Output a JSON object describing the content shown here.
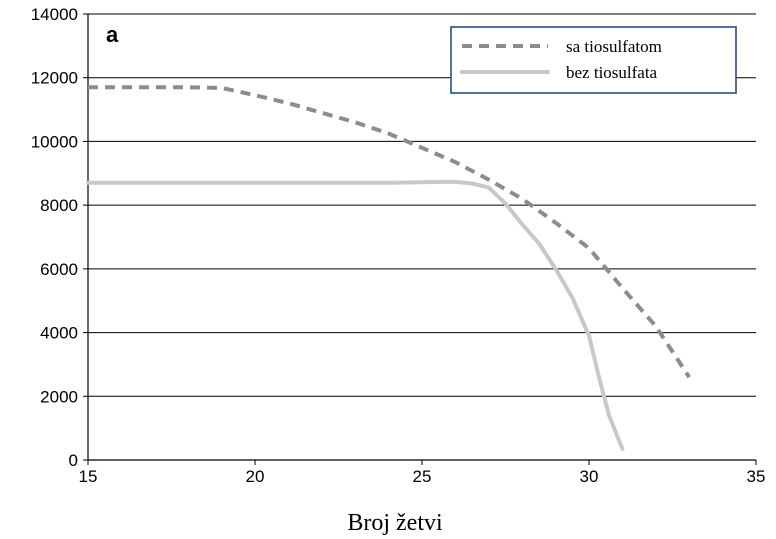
{
  "chart_data": {
    "type": "line",
    "panel_label": "a",
    "title": "",
    "xlabel": "Broj žetvi",
    "ylabel": "",
    "xlim": [
      15,
      35
    ],
    "ylim": [
      0,
      14000
    ],
    "x_ticks": [
      15,
      20,
      25,
      30,
      35
    ],
    "y_ticks": [
      0,
      2000,
      4000,
      6000,
      8000,
      10000,
      12000,
      14000
    ],
    "grid": "horizontal",
    "legend_position": "top-right",
    "series": [
      {
        "name": "sa tiosulfatom",
        "style": "dashed",
        "color": "#8c8c8c",
        "x": [
          15,
          16,
          17,
          18,
          19,
          20,
          21,
          22,
          23,
          24,
          25,
          26,
          27,
          28,
          29,
          30,
          31,
          32,
          33
        ],
        "y": [
          11700,
          11700,
          11700,
          11700,
          11680,
          11450,
          11200,
          10900,
          10600,
          10250,
          9800,
          9350,
          8800,
          8200,
          7450,
          6650,
          5400,
          4200,
          2600
        ]
      },
      {
        "name": "bez tiosulfata",
        "style": "solid",
        "color": "#c8c8c8",
        "x": [
          15,
          16,
          17,
          18,
          19,
          20,
          21,
          22,
          23,
          24,
          25,
          25.5,
          26,
          26.5,
          27,
          27.5,
          28,
          28.5,
          29,
          29.5,
          30,
          30.3,
          30.6,
          31
        ],
        "y": [
          8700,
          8700,
          8700,
          8700,
          8700,
          8700,
          8700,
          8700,
          8700,
          8700,
          8720,
          8730,
          8730,
          8680,
          8550,
          8050,
          7400,
          6800,
          6000,
          5100,
          3900,
          2600,
          1400,
          350
        ]
      }
    ]
  }
}
